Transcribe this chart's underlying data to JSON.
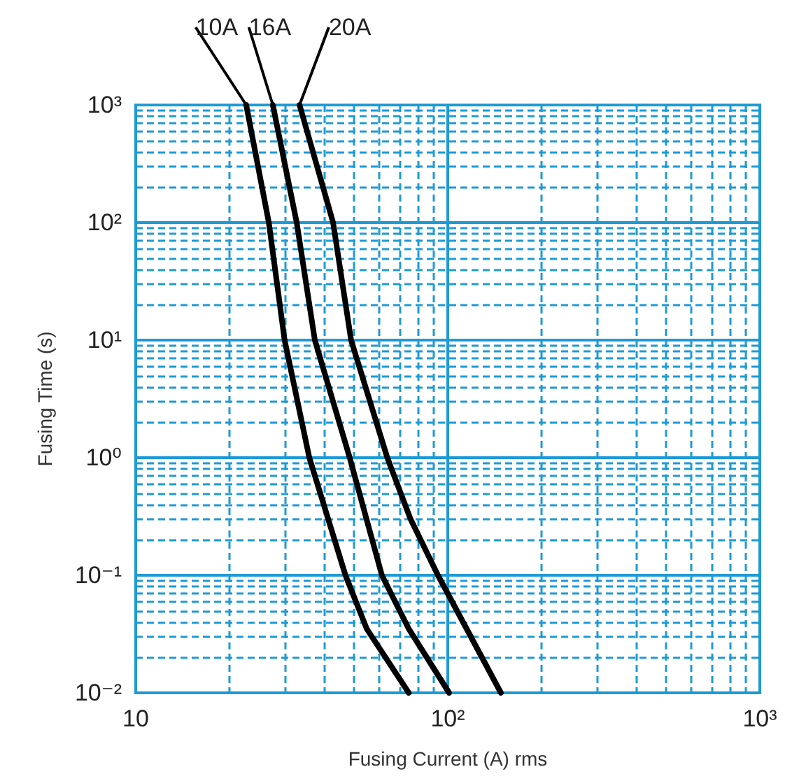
{
  "chart_data": {
    "type": "line",
    "xlabel": "Fusing Current (A) rms",
    "ylabel": "Fusing Time (s)",
    "log": "xy",
    "grid": true,
    "marker": "none",
    "line_style": "solid",
    "xlim": [
      10,
      1000
    ],
    "ylim": [
      0.01,
      1000
    ],
    "xticks": [
      {
        "value": 10,
        "label": "10"
      },
      {
        "value": 20,
        "label": null
      },
      {
        "value": 30,
        "label": null
      },
      {
        "value": 40,
        "label": null
      },
      {
        "value": 50,
        "label": null
      },
      {
        "value": 60,
        "label": null
      },
      {
        "value": 70,
        "label": null
      },
      {
        "value": 80,
        "label": null
      },
      {
        "value": 90,
        "label": null
      },
      {
        "value": 100,
        "label": "10²"
      },
      {
        "value": 200,
        "label": null
      },
      {
        "value": 300,
        "label": null
      },
      {
        "value": 400,
        "label": null
      },
      {
        "value": 500,
        "label": null
      },
      {
        "value": 600,
        "label": null
      },
      {
        "value": 700,
        "label": null
      },
      {
        "value": 800,
        "label": null
      },
      {
        "value": 900,
        "label": null
      },
      {
        "value": 1000,
        "label": "10³"
      }
    ],
    "yticks": [
      {
        "value": 0.01,
        "label": "10⁻²"
      },
      {
        "value": 0.02,
        "label": null
      },
      {
        "value": 0.03,
        "label": null
      },
      {
        "value": 0.04,
        "label": null
      },
      {
        "value": 0.05,
        "label": null
      },
      {
        "value": 0.06,
        "label": null
      },
      {
        "value": 0.07,
        "label": null
      },
      {
        "value": 0.08,
        "label": null
      },
      {
        "value": 0.09,
        "label": null
      },
      {
        "value": 0.1,
        "label": "10⁻¹"
      },
      {
        "value": 0.2,
        "label": null
      },
      {
        "value": 0.3,
        "label": null
      },
      {
        "value": 0.4,
        "label": null
      },
      {
        "value": 0.5,
        "label": null
      },
      {
        "value": 0.6,
        "label": null
      },
      {
        "value": 0.7,
        "label": null
      },
      {
        "value": 0.8,
        "label": null
      },
      {
        "value": 0.9,
        "label": null
      },
      {
        "value": 1,
        "label": "10⁰"
      },
      {
        "value": 2,
        "label": null
      },
      {
        "value": 3,
        "label": null
      },
      {
        "value": 4,
        "label": null
      },
      {
        "value": 5,
        "label": null
      },
      {
        "value": 6,
        "label": null
      },
      {
        "value": 7,
        "label": null
      },
      {
        "value": 8,
        "label": null
      },
      {
        "value": 9,
        "label": null
      },
      {
        "value": 10,
        "label": "10¹"
      },
      {
        "value": 20,
        "label": null
      },
      {
        "value": 30,
        "label": null
      },
      {
        "value": 40,
        "label": null
      },
      {
        "value": 50,
        "label": null
      },
      {
        "value": 60,
        "label": null
      },
      {
        "value": 70,
        "label": null
      },
      {
        "value": 80,
        "label": null
      },
      {
        "value": 90,
        "label": null
      },
      {
        "value": 100,
        "label": "10²"
      },
      {
        "value": 200,
        "label": null
      },
      {
        "value": 300,
        "label": null
      },
      {
        "value": 400,
        "label": null
      },
      {
        "value": 500,
        "label": null
      },
      {
        "value": 600,
        "label": null
      },
      {
        "value": 700,
        "label": null
      },
      {
        "value": 800,
        "label": null
      },
      {
        "value": 900,
        "label": null
      },
      {
        "value": 1000,
        "label": "10³"
      }
    ],
    "series": [
      {
        "name": "10A",
        "color": "#000000",
        "x": [
          22.6,
          26.7,
          30,
          36,
          47,
          55,
          75
        ],
        "values": [
          1000,
          100,
          10,
          1,
          0.1,
          0.035,
          0.01
        ]
      },
      {
        "name": "16A",
        "color": "#000000",
        "x": [
          27.5,
          32.8,
          37.5,
          48.5,
          61.5,
          75,
          101
        ],
        "values": [
          1000,
          100,
          10,
          1,
          0.1,
          0.035,
          0.01
        ]
      },
      {
        "name": "20A",
        "color": "#000000",
        "x": [
          33.5,
          42.9,
          49,
          64,
          76,
          93,
          148
        ],
        "values": [
          1000,
          100,
          10,
          1,
          0.3,
          0.1,
          0.01
        ]
      }
    ]
  }
}
